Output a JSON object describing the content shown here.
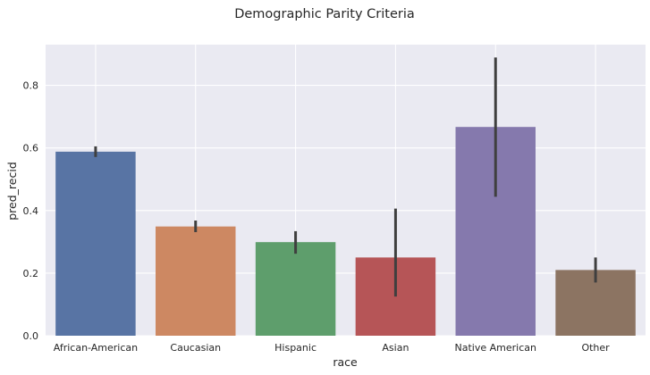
{
  "chart_data": {
    "type": "bar",
    "title": "Demographic Parity Criteria",
    "xlabel": "race",
    "ylabel": "pred_recid",
    "ylim": [
      0,
      0.93
    ],
    "yticks": [
      "0.0",
      "0.2",
      "0.4",
      "0.6",
      "0.8"
    ],
    "grid": true,
    "categories": [
      "African-American",
      "Caucasian",
      "Hispanic",
      "Asian",
      "Native American",
      "Other"
    ],
    "values": [
      0.588,
      0.349,
      0.299,
      0.25,
      0.667,
      0.21
    ],
    "error_low": [
      0.571,
      0.331,
      0.262,
      0.125,
      0.444,
      0.17
    ],
    "error_high": [
      0.605,
      0.368,
      0.334,
      0.406,
      0.889,
      0.25
    ],
    "colors": [
      "#5874a4",
      "#cd8862",
      "#5e9e6c",
      "#b65557",
      "#8579ad",
      "#8c7462"
    ],
    "background": "#eaeaf2",
    "grid_color": "#ffffff",
    "errorbar_color": "#3f3f3f"
  }
}
